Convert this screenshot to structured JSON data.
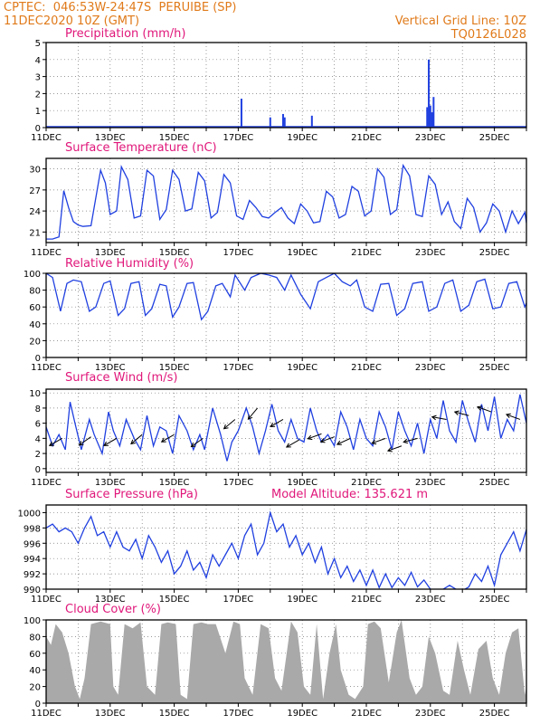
{
  "header": {
    "line1": "CPTEC:  046:53W-24:47S  PERUIBE (SP)",
    "line2": "11DEC2020 10Z (GMT)",
    "right1": "Vertical Grid Line: 10Z",
    "right2": "TQ0126L028"
  },
  "panels": [
    {
      "id": "precip",
      "title": "Precipitation (mm/h)",
      "extra": ""
    },
    {
      "id": "temp",
      "title": "Surface Temperature (nC)",
      "extra": ""
    },
    {
      "id": "rh",
      "title": "Relative Humidity (%)",
      "extra": ""
    },
    {
      "id": "wind",
      "title": "Surface Wind (m/s)",
      "extra": ""
    },
    {
      "id": "pres",
      "title": "Surface Pressure (hPa)",
      "extra": "Model Altitude: 135.621 m"
    },
    {
      "id": "cloud",
      "title": "Cloud Cover (%)",
      "extra": ""
    }
  ],
  "colors": {
    "line": "#2040e0",
    "header": "#e07a1a",
    "title": "#e0177a",
    "cloud": "#a9a9a9"
  },
  "chart_data": [
    {
      "type": "bar",
      "title": "Precipitation (mm/h)",
      "ylim": [
        0,
        5
      ],
      "yticks": [
        0,
        1,
        2,
        3,
        4,
        5
      ],
      "xtick_labels": [
        "11DEC",
        "13DEC",
        "15DEC",
        "17DEC",
        "19DEC",
        "21DEC",
        "23DEC",
        "25DEC"
      ],
      "x_days": [
        17.1,
        18.0,
        18.4,
        18.45,
        19.3,
        22.9,
        22.95,
        23.0,
        23.05,
        23.1
      ],
      "values": [
        1.7,
        0.6,
        0.8,
        0.6,
        0.7,
        1.2,
        4.0,
        1.3,
        0.9,
        1.8
      ]
    },
    {
      "type": "line",
      "title": "Surface Temperature (nC)",
      "ylim": [
        19.5,
        31.5
      ],
      "yticks": [
        21,
        24,
        27,
        30
      ],
      "xtick_labels": [
        "11DEC",
        "13DEC",
        "15DEC",
        "17DEC",
        "19DEC",
        "21DEC",
        "23DEC",
        "25DEC"
      ],
      "x_days": [
        11.0,
        11.2,
        11.4,
        11.55,
        11.7,
        11.85,
        12.0,
        12.15,
        12.4,
        12.7,
        12.85,
        13.0,
        13.2,
        13.35,
        13.55,
        13.75,
        13.95,
        14.15,
        14.35,
        14.55,
        14.75,
        14.95,
        15.15,
        15.35,
        15.55,
        15.75,
        15.95,
        16.15,
        16.35,
        16.55,
        16.75,
        16.95,
        17.15,
        17.35,
        17.55,
        17.75,
        17.95,
        18.15,
        18.35,
        18.55,
        18.75,
        18.95,
        19.15,
        19.35,
        19.55,
        19.75,
        19.95,
        20.15,
        20.35,
        20.55,
        20.75,
        20.95,
        21.15,
        21.35,
        21.55,
        21.75,
        21.95,
        22.15,
        22.35,
        22.55,
        22.75,
        22.95,
        23.15,
        23.35,
        23.55,
        23.75,
        23.95,
        24.15,
        24.35,
        24.55,
        24.75,
        24.95,
        25.15,
        25.35,
        25.55,
        25.75,
        25.95,
        26.0
      ],
      "values": [
        20.0,
        20.0,
        20.3,
        26.9,
        24.5,
        22.5,
        22.0,
        21.8,
        21.9,
        29.8,
        28.0,
        23.5,
        24.0,
        30.3,
        28.5,
        23.0,
        23.3,
        29.8,
        29.0,
        22.8,
        24.2,
        29.8,
        28.5,
        24.0,
        24.3,
        29.5,
        28.3,
        23.0,
        23.8,
        29.2,
        28.0,
        23.3,
        22.8,
        25.5,
        24.5,
        23.2,
        23.0,
        23.8,
        24.5,
        23.0,
        22.2,
        25.0,
        24.0,
        22.3,
        22.5,
        26.8,
        26.0,
        23.0,
        23.5,
        27.5,
        26.8,
        23.3,
        24.0,
        30.0,
        28.8,
        23.5,
        24.2,
        30.5,
        29.0,
        23.5,
        23.2,
        29.0,
        27.8,
        23.5,
        25.3,
        22.5,
        21.5,
        25.8,
        24.5,
        21.0,
        22.3,
        25.0,
        24.0,
        21.0,
        24.0,
        22.2,
        23.8,
        22.3
      ]
    },
    {
      "type": "line",
      "title": "Relative Humidity (%)",
      "ylim": [
        0,
        100
      ],
      "yticks": [
        0,
        20,
        40,
        60,
        80,
        100
      ],
      "xtick_labels": [
        "11DEC",
        "13DEC",
        "15DEC",
        "17DEC",
        "19DEC",
        "21DEC",
        "23DEC",
        "25DEC"
      ],
      "x_days": [
        11.0,
        11.2,
        11.45,
        11.65,
        11.85,
        12.1,
        12.35,
        12.55,
        12.8,
        13.0,
        13.25,
        13.45,
        13.65,
        13.9,
        14.1,
        14.3,
        14.55,
        14.75,
        14.95,
        15.15,
        15.4,
        15.6,
        15.85,
        16.05,
        16.3,
        16.5,
        16.75,
        16.9,
        17.2,
        17.4,
        17.7,
        17.95,
        18.2,
        18.45,
        18.65,
        18.95,
        19.25,
        19.5,
        19.75,
        20.0,
        20.25,
        20.5,
        20.7,
        20.95,
        21.2,
        21.45,
        21.7,
        21.95,
        22.2,
        22.45,
        22.75,
        22.95,
        23.2,
        23.45,
        23.7,
        23.95,
        24.2,
        24.45,
        24.7,
        24.95,
        25.2,
        25.45,
        25.7,
        25.95,
        26.0
      ],
      "values": [
        100,
        95,
        55,
        88,
        92,
        90,
        55,
        60,
        88,
        91,
        50,
        58,
        88,
        90,
        50,
        58,
        87,
        85,
        48,
        60,
        88,
        89,
        45,
        55,
        85,
        88,
        72,
        98,
        80,
        95,
        100,
        98,
        95,
        80,
        98,
        75,
        58,
        90,
        95,
        100,
        90,
        85,
        92,
        60,
        55,
        87,
        88,
        50,
        58,
        88,
        90,
        55,
        60,
        88,
        92,
        55,
        62,
        90,
        93,
        58,
        60,
        88,
        90,
        60,
        65
      ]
    },
    {
      "type": "line",
      "title": "Surface Wind (m/s)",
      "ylim": [
        -0.5,
        10.5
      ],
      "yticks": [
        0,
        2,
        4,
        6,
        8,
        10
      ],
      "xtick_labels": [
        "11DEC",
        "13DEC",
        "15DEC",
        "17DEC",
        "19DEC",
        "21DEC",
        "23DEC",
        "25DEC"
      ],
      "x_days": [
        11.0,
        11.2,
        11.4,
        11.6,
        11.75,
        11.9,
        12.1,
        12.35,
        12.5,
        12.75,
        12.95,
        13.1,
        13.3,
        13.5,
        13.75,
        13.95,
        14.15,
        14.35,
        14.55,
        14.75,
        14.95,
        15.15,
        15.4,
        15.6,
        15.8,
        15.95,
        16.2,
        16.45,
        16.65,
        16.8,
        17.0,
        17.25,
        17.45,
        17.65,
        17.85,
        18.05,
        18.25,
        18.45,
        18.65,
        18.85,
        19.05,
        19.25,
        19.45,
        19.6,
        19.8,
        20.0,
        20.2,
        20.4,
        20.6,
        20.8,
        21.0,
        21.2,
        21.4,
        21.6,
        21.8,
        22.0,
        22.2,
        22.4,
        22.6,
        22.8,
        23.0,
        23.2,
        23.4,
        23.6,
        23.8,
        24.0,
        24.2,
        24.4,
        24.6,
        24.8,
        25.0,
        25.2,
        25.4,
        25.6,
        25.8,
        26.0
      ],
      "values": [
        5.5,
        3.0,
        4.5,
        2.5,
        8.8,
        6.0,
        2.5,
        6.5,
        4.5,
        2.0,
        7.5,
        5.0,
        3.0,
        6.5,
        4.0,
        2.5,
        7.0,
        3.0,
        5.5,
        5.0,
        2.0,
        7.0,
        5.0,
        2.5,
        4.5,
        2.5,
        8.0,
        4.5,
        1.0,
        3.5,
        5.0,
        8.0,
        5.5,
        2.0,
        5.0,
        8.5,
        5.0,
        3.5,
        6.5,
        4.0,
        3.5,
        8.0,
        5.0,
        3.5,
        4.5,
        3.0,
        7.5,
        5.5,
        2.5,
        6.5,
        4.0,
        3.0,
        7.5,
        5.5,
        2.5,
        7.5,
        5.0,
        3.0,
        6.0,
        2.0,
        6.5,
        4.0,
        9.0,
        5.0,
        3.5,
        9.0,
        6.0,
        3.5,
        8.5,
        5.0,
        9.5,
        4.0,
        6.5,
        5.0,
        9.8,
        6.0
      ]
    },
    {
      "type": "line",
      "title": "Surface Pressure (hPa)",
      "ylim": [
        990,
        1001
      ],
      "yticks": [
        990,
        992,
        994,
        996,
        998,
        1000
      ],
      "xtick_labels": [
        "11DEC",
        "13DEC",
        "15DEC",
        "17DEC",
        "19DEC",
        "21DEC",
        "23DEC",
        "25DEC"
      ],
      "x_days": [
        11.0,
        11.2,
        11.4,
        11.6,
        11.8,
        12.0,
        12.2,
        12.4,
        12.6,
        12.8,
        13.0,
        13.2,
        13.4,
        13.6,
        13.8,
        14.0,
        14.2,
        14.4,
        14.6,
        14.8,
        15.0,
        15.2,
        15.4,
        15.6,
        15.8,
        16.0,
        16.2,
        16.4,
        16.6,
        16.8,
        17.0,
        17.2,
        17.4,
        17.6,
        17.8,
        18.0,
        18.2,
        18.4,
        18.6,
        18.8,
        19.0,
        19.2,
        19.4,
        19.6,
        19.8,
        20.0,
        20.2,
        20.4,
        20.6,
        20.8,
        21.0,
        21.2,
        21.4,
        21.6,
        21.8,
        22.0,
        22.2,
        22.4,
        22.6,
        22.8,
        23.0,
        23.2,
        23.4,
        23.6,
        23.8,
        24.0,
        24.2,
        24.4,
        24.6,
        24.8,
        25.0,
        25.2,
        25.4,
        25.6,
        25.8,
        26.0
      ],
      "values": [
        998,
        998.5,
        997.5,
        998,
        997.5,
        996,
        998,
        999.5,
        997,
        997.5,
        995.5,
        997.5,
        995.5,
        995,
        996.5,
        994,
        997,
        995.5,
        993.5,
        995,
        992,
        993,
        995,
        992.5,
        993.5,
        991.5,
        994.5,
        993,
        994.5,
        996,
        994,
        997,
        998.5,
        994.5,
        996,
        1000,
        997.5,
        998.5,
        995.5,
        997,
        994.5,
        996,
        993.5,
        995.5,
        992,
        994,
        991.5,
        993,
        991,
        992.5,
        990.5,
        992.5,
        990.2,
        992,
        990.2,
        991.5,
        990.5,
        992.2,
        990.3,
        991.2,
        990.0,
        989.8,
        990.0,
        990.5,
        990.0,
        989.8,
        990.3,
        992,
        991,
        993,
        990.5,
        994.5,
        996,
        997.5,
        995,
        997.8
      ]
    },
    {
      "type": "area",
      "title": "Cloud Cover (%)",
      "ylim": [
        0,
        100
      ],
      "yticks": [
        0,
        20,
        40,
        60,
        80,
        100
      ],
      "xtick_labels": [
        "11DEC",
        "13DEC",
        "15DEC",
        "17DEC",
        "19DEC",
        "21DEC",
        "23DEC",
        "25DEC"
      ],
      "x_days": [
        11.0,
        11.15,
        11.3,
        11.5,
        11.7,
        11.9,
        12.05,
        12.2,
        12.4,
        12.7,
        13.0,
        13.1,
        13.25,
        13.45,
        13.7,
        13.95,
        14.15,
        14.4,
        14.6,
        14.8,
        15.05,
        15.2,
        15.4,
        15.6,
        15.85,
        16.05,
        16.3,
        16.6,
        16.85,
        17.05,
        17.2,
        17.45,
        17.7,
        17.95,
        18.15,
        18.35,
        18.65,
        18.85,
        19.05,
        19.25,
        19.45,
        19.65,
        19.85,
        20.05,
        20.2,
        20.45,
        20.65,
        20.9,
        21.05,
        21.25,
        21.45,
        21.7,
        21.95,
        22.1,
        22.35,
        22.55,
        22.75,
        22.95,
        23.15,
        23.4,
        23.6,
        23.85,
        24.05,
        24.25,
        24.5,
        24.75,
        24.95,
        25.15,
        25.35,
        25.55,
        25.75,
        25.95,
        26.0
      ],
      "values": [
        80,
        70,
        95,
        85,
        60,
        20,
        5,
        30,
        95,
        98,
        95,
        20,
        10,
        95,
        90,
        97,
        20,
        10,
        95,
        97,
        95,
        10,
        5,
        95,
        97,
        95,
        95,
        60,
        98,
        95,
        30,
        10,
        95,
        90,
        30,
        15,
        98,
        85,
        20,
        10,
        95,
        5,
        60,
        95,
        40,
        10,
        5,
        20,
        95,
        98,
        90,
        25,
        85,
        100,
        30,
        10,
        20,
        80,
        60,
        15,
        10,
        75,
        40,
        10,
        65,
        75,
        30,
        10,
        60,
        85,
        90,
        10,
        20
      ]
    }
  ]
}
